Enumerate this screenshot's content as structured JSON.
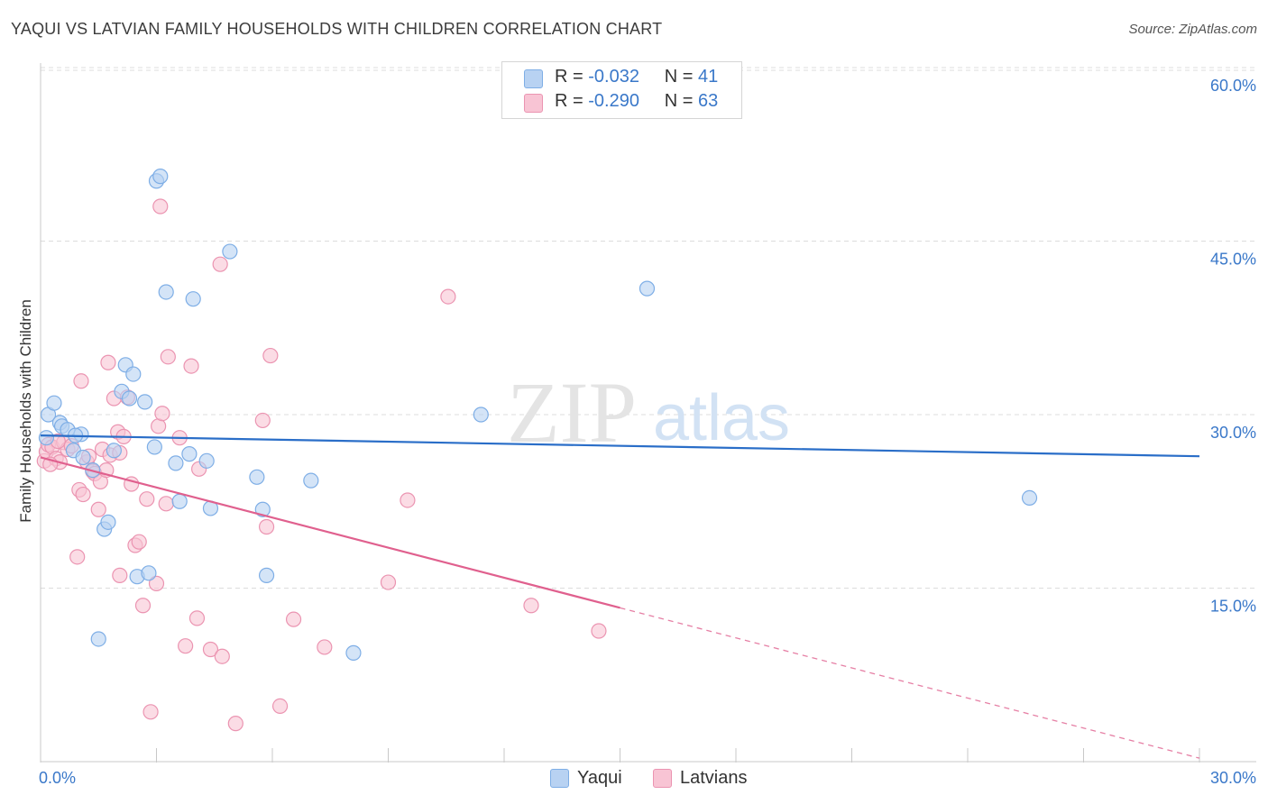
{
  "header": {
    "title": "YAQUI VS LATVIAN FAMILY HOUSEHOLDS WITH CHILDREN CORRELATION CHART",
    "source": "Source: ZipAtlas.com"
  },
  "legend": {
    "rows": [
      {
        "r_label": "R =",
        "r_value": "-0.032",
        "n_label": "N =",
        "n_value": "41"
      },
      {
        "r_label": "R =",
        "r_value": "-0.290",
        "n_label": "N =",
        "n_value": "63"
      }
    ]
  },
  "watermark": {
    "zip": "ZIP",
    "atlas": "atlas"
  },
  "colors": {
    "yaqui_fill": "#b8d2f2",
    "yaqui_stroke": "#7eaee6",
    "yaqui_line": "#2a6ec8",
    "latvian_fill": "#f8c4d4",
    "latvian_stroke": "#eb94b1",
    "latvian_line": "#e0608e",
    "axis_label": "#3a78c9",
    "grid": "#dcdcdc"
  },
  "chart_data": {
    "type": "scatter",
    "title": "YAQUI VS LATVIAN FAMILY HOUSEHOLDS WITH CHILDREN CORRELATION CHART",
    "xlabel": "",
    "ylabel": "Family Households with Children",
    "xlim": [
      0,
      30
    ],
    "ylim": [
      0,
      62
    ],
    "x_tick_labels": [
      "0.0%",
      "30.0%"
    ],
    "y_tick_labels": [
      "15.0%",
      "30.0%",
      "45.0%",
      "60.0%"
    ],
    "y_ticks": [
      15,
      30,
      45,
      60
    ],
    "grid": true,
    "legend_position": "top-center",
    "series": [
      {
        "name": "Yaqui",
        "r": -0.032,
        "n": 41,
        "trend": {
          "x": [
            0,
            30
          ],
          "y": [
            28.2,
            26.4
          ],
          "dashed_from": null
        },
        "points": [
          [
            0.15,
            28.0
          ],
          [
            0.2,
            30.0
          ],
          [
            0.35,
            31.0
          ],
          [
            0.5,
            29.3
          ],
          [
            0.55,
            29.0
          ],
          [
            0.7,
            28.7
          ],
          [
            0.85,
            26.9
          ],
          [
            1.05,
            28.3
          ],
          [
            1.1,
            26.3
          ],
          [
            1.35,
            25.2
          ],
          [
            1.5,
            10.6
          ],
          [
            1.65,
            20.1
          ],
          [
            1.75,
            20.7
          ],
          [
            1.9,
            26.9
          ],
          [
            2.1,
            32.0
          ],
          [
            2.2,
            34.3
          ],
          [
            2.3,
            31.4
          ],
          [
            2.4,
            33.5
          ],
          [
            2.5,
            16.0
          ],
          [
            2.7,
            31.1
          ],
          [
            2.8,
            16.3
          ],
          [
            2.95,
            27.2
          ],
          [
            3.0,
            50.2
          ],
          [
            3.1,
            50.6
          ],
          [
            3.25,
            40.6
          ],
          [
            3.5,
            25.8
          ],
          [
            3.6,
            22.5
          ],
          [
            3.85,
            26.6
          ],
          [
            3.95,
            40.0
          ],
          [
            4.3,
            26.0
          ],
          [
            4.4,
            21.9
          ],
          [
            4.9,
            44.1
          ],
          [
            5.6,
            24.6
          ],
          [
            5.75,
            21.8
          ],
          [
            5.85,
            16.1
          ],
          [
            7.0,
            24.3
          ],
          [
            8.1,
            9.4
          ],
          [
            11.4,
            30.0
          ],
          [
            15.7,
            40.9
          ],
          [
            25.6,
            22.8
          ],
          [
            0.9,
            28.2
          ]
        ]
      },
      {
        "name": "Latvians",
        "r": -0.29,
        "n": 63,
        "trend": {
          "x": [
            0,
            30
          ],
          "y": [
            26.3,
            0.3
          ],
          "dashed_from": 15.0
        },
        "points": [
          [
            0.1,
            26.0
          ],
          [
            0.15,
            26.8
          ],
          [
            0.2,
            27.4
          ],
          [
            0.3,
            27.2
          ],
          [
            0.4,
            26.2
          ],
          [
            0.5,
            25.9
          ],
          [
            0.6,
            27.6
          ],
          [
            0.7,
            27.0
          ],
          [
            0.8,
            27.3
          ],
          [
            0.95,
            17.7
          ],
          [
            1.0,
            23.5
          ],
          [
            1.05,
            32.9
          ],
          [
            1.1,
            23.1
          ],
          [
            1.2,
            25.9
          ],
          [
            1.35,
            25.1
          ],
          [
            1.4,
            24.9
          ],
          [
            1.5,
            21.8
          ],
          [
            1.55,
            24.2
          ],
          [
            1.6,
            27.0
          ],
          [
            1.7,
            25.2
          ],
          [
            1.75,
            34.5
          ],
          [
            1.8,
            26.5
          ],
          [
            1.9,
            31.4
          ],
          [
            2.0,
            28.5
          ],
          [
            2.05,
            16.1
          ],
          [
            2.15,
            28.1
          ],
          [
            2.25,
            31.5
          ],
          [
            2.35,
            24.0
          ],
          [
            2.45,
            18.7
          ],
          [
            2.55,
            19.0
          ],
          [
            2.65,
            13.5
          ],
          [
            2.75,
            22.7
          ],
          [
            2.85,
            4.3
          ],
          [
            3.0,
            15.4
          ],
          [
            3.05,
            29.0
          ],
          [
            3.1,
            48.0
          ],
          [
            3.15,
            30.1
          ],
          [
            3.25,
            22.3
          ],
          [
            3.3,
            35.0
          ],
          [
            3.6,
            28.0
          ],
          [
            3.75,
            10.0
          ],
          [
            3.9,
            34.2
          ],
          [
            4.05,
            12.4
          ],
          [
            4.1,
            25.3
          ],
          [
            4.4,
            9.7
          ],
          [
            4.65,
            43.0
          ],
          [
            4.7,
            9.1
          ],
          [
            5.05,
            3.3
          ],
          [
            5.75,
            29.5
          ],
          [
            5.85,
            20.3
          ],
          [
            5.95,
            35.1
          ],
          [
            6.2,
            4.8
          ],
          [
            6.55,
            12.3
          ],
          [
            7.35,
            9.9
          ],
          [
            9.0,
            15.5
          ],
          [
            9.5,
            22.6
          ],
          [
            10.55,
            40.2
          ],
          [
            12.7,
            13.5
          ],
          [
            14.45,
            11.3
          ],
          [
            2.05,
            26.7
          ],
          [
            0.25,
            25.7
          ],
          [
            0.45,
            27.7
          ],
          [
            1.25,
            26.4
          ]
        ]
      }
    ]
  }
}
